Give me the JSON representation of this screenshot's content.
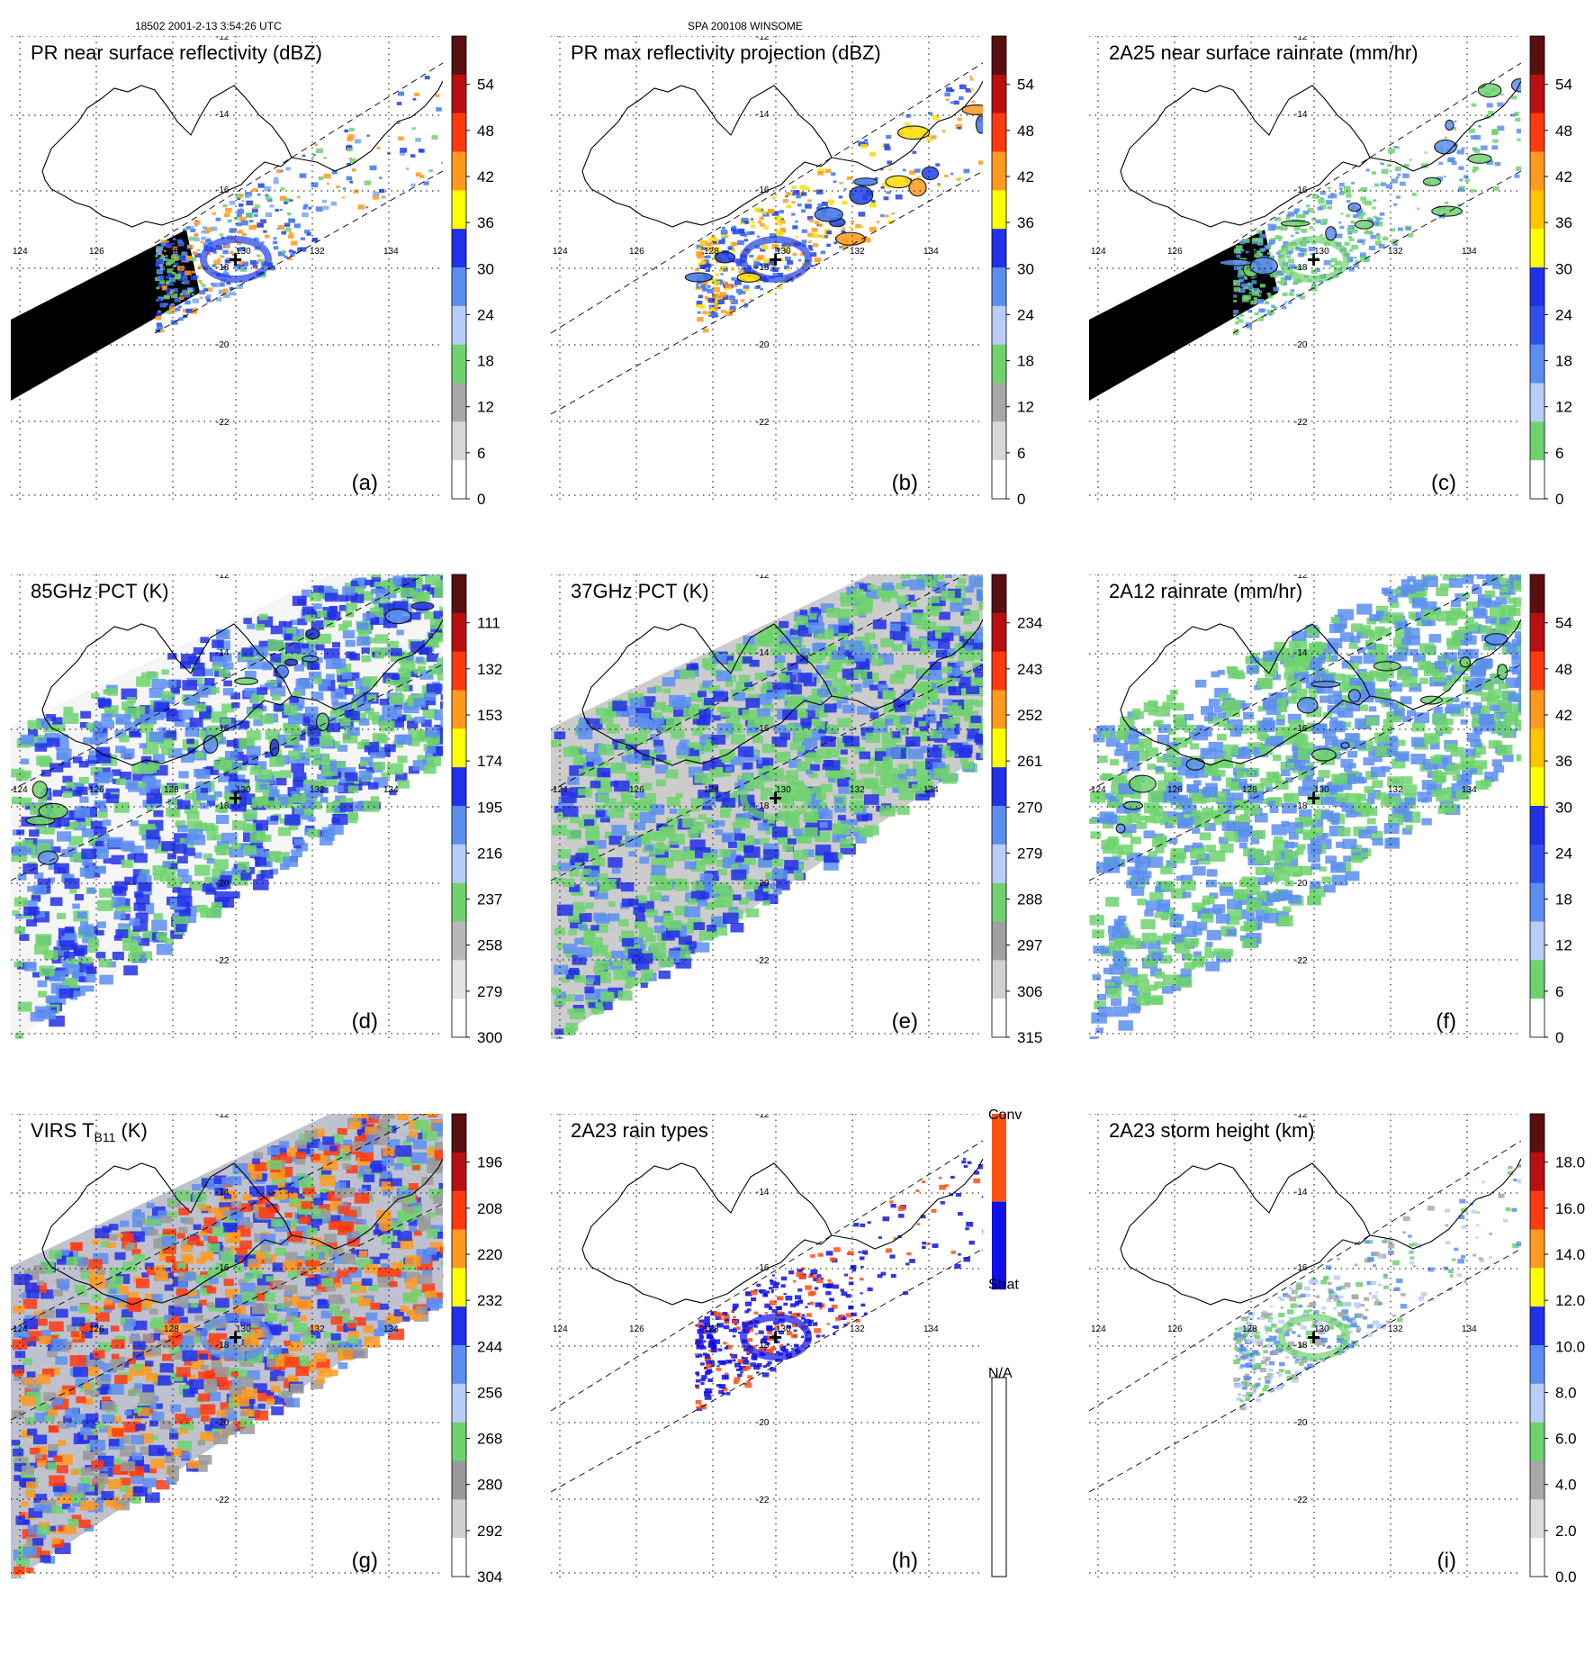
{
  "header": {
    "orbit_time": "18502 2001-2-13 3:54:26 UTC",
    "storm_id": "SPA 200108 WINSOME"
  },
  "map": {
    "lon_labels": [
      "124",
      "126",
      "128",
      "130",
      "132",
      "134"
    ],
    "lat_labels": [
      "-12",
      "-14",
      "-16",
      "-18",
      "-20",
      "-22"
    ],
    "storm_center_symbol": "+"
  },
  "panels": [
    {
      "id": "a",
      "title": "PR near surface reflectivity (dBZ)",
      "tag": "(a)",
      "swath": "narrow",
      "missing_block": true,
      "ticks": [
        "0",
        "6",
        "12",
        "18",
        "24",
        "30",
        "36",
        "42",
        "48",
        "54"
      ],
      "colors": [
        "#ffffff",
        "#d8d8d8",
        "#a8a8a8",
        "#6fd26f",
        "#b8cdf8",
        "#5c8ef0",
        "#2230e8",
        "#ffff00",
        "#ff9a1e",
        "#ff3a10",
        "#b81010",
        "#5a1010"
      ],
      "field": {
        "type": "scatter",
        "colors": [
          "#1f3fe6",
          "#3d74ee",
          "#79a8f2",
          "#6fd26f",
          "#ff9a1e"
        ]
      }
    },
    {
      "id": "b",
      "title": "PR max reflectivity projection (dBZ)",
      "tag": "(b)",
      "swath": "narrow-dashed",
      "missing_block": false,
      "ticks": [
        "0",
        "6",
        "12",
        "18",
        "24",
        "30",
        "36",
        "42",
        "48",
        "54"
      ],
      "colors": [
        "#ffffff",
        "#d8d8d8",
        "#a8a8a8",
        "#6fd26f",
        "#b8cdf8",
        "#5c8ef0",
        "#2230e8",
        "#ffff00",
        "#ff9a1e",
        "#ff3a10",
        "#b81010",
        "#5a1010"
      ],
      "field": {
        "type": "contour",
        "colors": [
          "#1f3fe6",
          "#3d74ee",
          "#ffdd00",
          "#ff9a1e"
        ]
      }
    },
    {
      "id": "c",
      "title": "2A25 near surface rainrate (mm/hr)",
      "tag": "(c)",
      "swath": "narrow",
      "missing_block": true,
      "ticks": [
        "0",
        "6",
        "12",
        "18",
        "24",
        "30",
        "36",
        "42",
        "48",
        "54"
      ],
      "colors": [
        "#ffffff",
        "#6fd26f",
        "#b8cdf8",
        "#5c8ef0",
        "#3050ee",
        "#2230e8",
        "#ffff00",
        "#ffc400",
        "#ff9a1e",
        "#ff3a10",
        "#b81010",
        "#5a1010"
      ],
      "field": {
        "type": "contour",
        "colors": [
          "#6fd26f",
          "#5c8ef0"
        ]
      }
    },
    {
      "id": "d",
      "title": "85GHz PCT (K)",
      "tag": "(d)",
      "swath": "wide",
      "missing_block": false,
      "ticks": [
        "300",
        "279",
        "258",
        "237",
        "216",
        "195",
        "174",
        "153",
        "132",
        "111"
      ],
      "colors": [
        "#ffffff",
        "#e4e4e4",
        "#b8b8b8",
        "#6fd26f",
        "#b8cdf8",
        "#5c8ef0",
        "#2230e8",
        "#ffff00",
        "#ff9a1e",
        "#ff3a10",
        "#b81010",
        "#5a1010"
      ],
      "field": {
        "type": "contour",
        "colors": [
          "#6fd26f",
          "#5c8ef0",
          "#2230e8"
        ]
      }
    },
    {
      "id": "e",
      "title": "37GHz PCT (K)",
      "tag": "(e)",
      "swath": "wide",
      "missing_block": false,
      "ticks": [
        "315",
        "306",
        "297",
        "288",
        "279",
        "270",
        "261",
        "252",
        "243",
        "234"
      ],
      "colors": [
        "#ffffff",
        "#d0d0d0",
        "#a0a0a0",
        "#6fd26f",
        "#b8cdf8",
        "#5c8ef0",
        "#2230e8",
        "#ffff00",
        "#ff9a1e",
        "#ff3a10",
        "#b81010",
        "#5a1010"
      ],
      "field": {
        "type": "scatter",
        "colors": [
          "#6fd26f",
          "#6fd26f",
          "#5c8ef0",
          "#2230e8"
        ]
      }
    },
    {
      "id": "f",
      "title": "2A12 rainrate (mm/hr)",
      "tag": "(f)",
      "swath": "wide-dashed",
      "missing_block": false,
      "ticks": [
        "0",
        "6",
        "12",
        "18",
        "24",
        "30",
        "36",
        "42",
        "48",
        "54"
      ],
      "colors": [
        "#ffffff",
        "#6fd26f",
        "#b8cdf8",
        "#5c8ef0",
        "#3050ee",
        "#2230e8",
        "#ffff00",
        "#ffc400",
        "#ff9a1e",
        "#ff3a10",
        "#b81010",
        "#5a1010"
      ],
      "field": {
        "type": "contour",
        "colors": [
          "#6fd26f",
          "#5c8ef0"
        ]
      }
    },
    {
      "id": "g",
      "title_main": "VIRS T",
      "title_sub": "B11",
      "title_unit": " (K)",
      "tag": "(g)",
      "swath": "wide",
      "missing_block": false,
      "ticks": [
        "304",
        "292",
        "280",
        "268",
        "256",
        "244",
        "232",
        "220",
        "208",
        "196"
      ],
      "colors": [
        "#ffffff",
        "#d0d0d0",
        "#9a9a9a",
        "#6fd26f",
        "#b8cdf8",
        "#5c8ef0",
        "#2230e8",
        "#ffff00",
        "#ff9a1e",
        "#ff3a10",
        "#b81010",
        "#5a1010"
      ],
      "field": {
        "type": "scatter",
        "colors": [
          "#5c8ef0",
          "#2230e8",
          "#ff9a1e",
          "#ff3a10",
          "#6fd26f",
          "#9a9a9a"
        ]
      }
    },
    {
      "id": "h",
      "title": "2A23 rain types",
      "tag": "(h)",
      "swath": "narrow-dashed",
      "missing_block": false,
      "categories": [
        "N/A",
        "Strat",
        "Conv"
      ],
      "colors": [
        "#ffffff",
        "#1010e8",
        "#ff5010"
      ],
      "field": {
        "type": "scatter",
        "colors": [
          "#1010e8",
          "#1010e8",
          "#ff5010"
        ]
      }
    },
    {
      "id": "i",
      "title": "2A23 storm height (km)",
      "tag": "(i)",
      "swath": "narrow-dashed",
      "missing_block": false,
      "ticks": [
        "0.0",
        "2.0",
        "4.0",
        "6.0",
        "8.0",
        "10.0",
        "12.0",
        "14.0",
        "16.0",
        "18.0"
      ],
      "colors": [
        "#ffffff",
        "#dcdcdc",
        "#a8a8a8",
        "#6fd26f",
        "#b8cdf8",
        "#5c8ef0",
        "#2230e8",
        "#ffff00",
        "#ff9a1e",
        "#ff3a10",
        "#b81010",
        "#5a1010"
      ],
      "field": {
        "type": "scatter",
        "colors": [
          "#6fd26f",
          "#a8a8a8",
          "#b8cdf8",
          "#5c8ef0"
        ]
      }
    }
  ]
}
